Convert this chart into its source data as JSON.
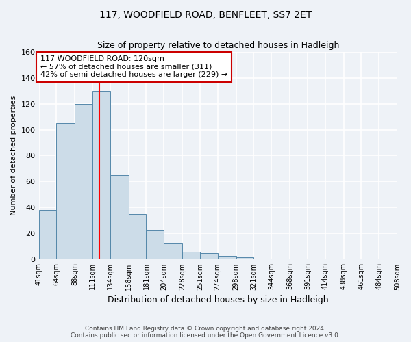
{
  "title": "117, WOODFIELD ROAD, BENFLEET, SS7 2ET",
  "subtitle": "Size of property relative to detached houses in Hadleigh",
  "xlabel": "Distribution of detached houses by size in Hadleigh",
  "ylabel": "Number of detached properties",
  "footer_line1": "Contains HM Land Registry data © Crown copyright and database right 2024.",
  "footer_line2": "Contains public sector information licensed under the Open Government Licence v3.0.",
  "bin_edges": [
    41,
    64,
    88,
    111,
    134,
    158,
    181,
    204,
    228,
    251,
    274,
    298,
    321,
    344,
    368,
    391,
    414,
    438,
    461,
    484,
    508
  ],
  "bar_heights": [
    38,
    105,
    120,
    130,
    65,
    35,
    23,
    13,
    6,
    5,
    3,
    2,
    0,
    0,
    0,
    0,
    1,
    0,
    1,
    0
  ],
  "bar_color": "#ccdce8",
  "bar_edge_color": "#5588aa",
  "red_line_x": 120,
  "ylim": [
    0,
    160
  ],
  "yticks": [
    0,
    20,
    40,
    60,
    80,
    100,
    120,
    140,
    160
  ],
  "annotation_title": "117 WOODFIELD ROAD: 120sqm",
  "annotation_line1": "← 57% of detached houses are smaller (311)",
  "annotation_line2": "42% of semi-detached houses are larger (229) →",
  "annotation_box_color": "#ffffff",
  "annotation_border_color": "#cc0000",
  "background_color": "#eef2f7",
  "grid_color": "#ffffff"
}
